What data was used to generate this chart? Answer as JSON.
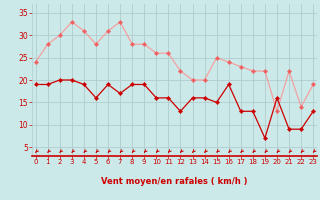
{
  "x": [
    0,
    1,
    2,
    3,
    4,
    5,
    6,
    7,
    8,
    9,
    10,
    11,
    12,
    13,
    14,
    15,
    16,
    17,
    18,
    19,
    20,
    21,
    22,
    23
  ],
  "rafales": [
    24,
    28,
    30,
    33,
    31,
    28,
    31,
    33,
    28,
    28,
    26,
    26,
    22,
    20,
    20,
    25,
    24,
    23,
    22,
    22,
    13,
    22,
    14,
    19
  ],
  "moyen": [
    19,
    19,
    20,
    20,
    19,
    16,
    19,
    17,
    19,
    19,
    16,
    16,
    13,
    16,
    16,
    15,
    19,
    13,
    13,
    7,
    16,
    9,
    9,
    13
  ],
  "bg_color": "#cce9e9",
  "line_color_rafales": "#f4a0a0",
  "line_color_moyen": "#cc0000",
  "marker_color_rafales": "#f06060",
  "marker_color_moyen": "#cc0000",
  "grid_color": "#b0cccc",
  "arrow_color": "#cc0000",
  "xlabel": "Vent moyen/en rafales ( km/h )",
  "xlabel_color": "#cc0000",
  "tick_color": "#cc0000",
  "ylim": [
    3,
    37
  ],
  "yticks": [
    5,
    10,
    15,
    20,
    25,
    30,
    35
  ],
  "xlim": [
    -0.3,
    23.3
  ]
}
